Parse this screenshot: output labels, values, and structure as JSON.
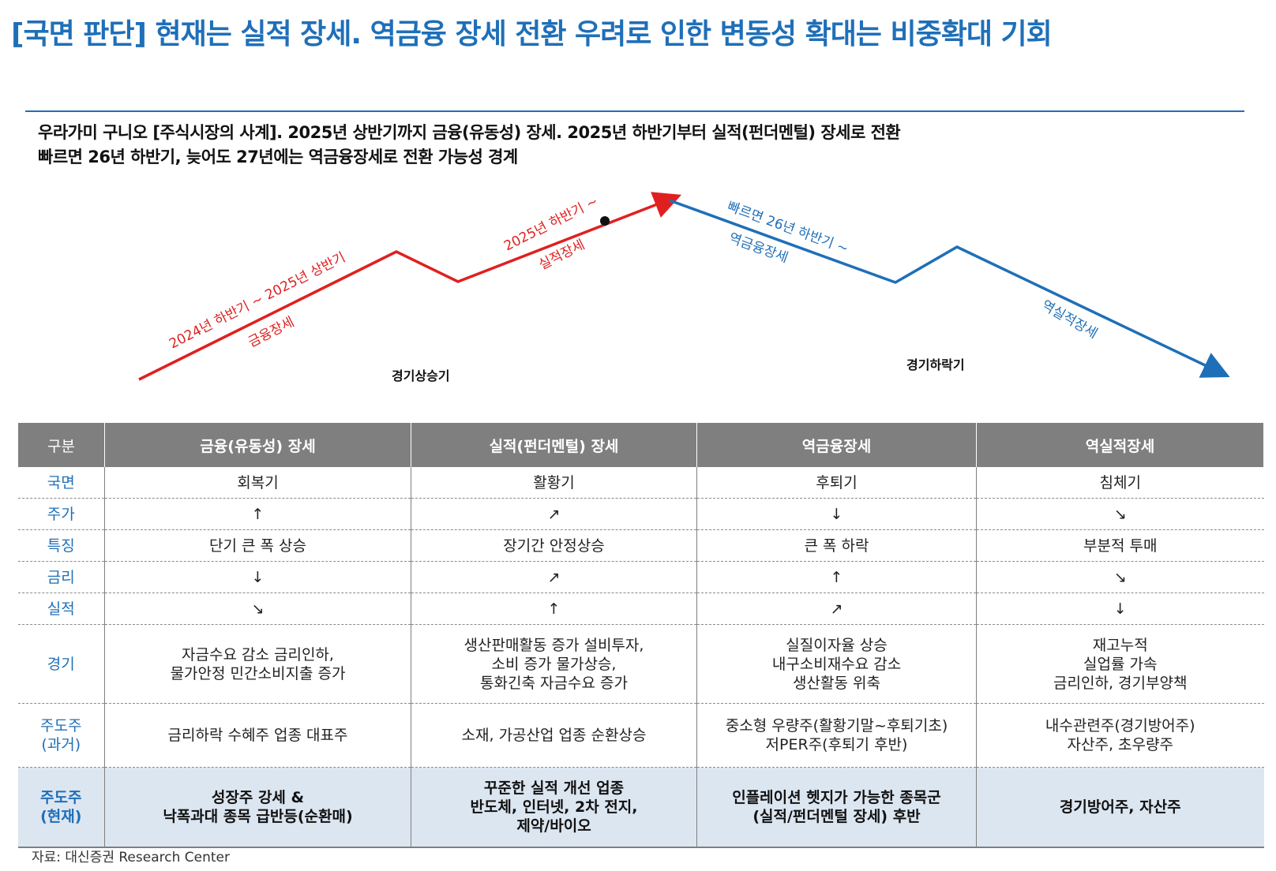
{
  "header": {
    "title": "[국면 판단] 현재는 실적 장세. 역금융 장세 전환 우려로 인한 변동성 확대는 비중확대 기회",
    "subtitle_line1": "우라가미 구니오 [주식시장의 사계]. 2025년 상반기까지 금융(유동성) 장세. 2025년 하반기부터 실적(펀더멘털) 장세로 전환",
    "subtitle_line2": "빠르면 26년 하반기, 늦어도 27년에는 역금융장세로 전환 가능성 경계"
  },
  "diagram": {
    "seg1_period": "2024년 하반기 ~ 2025년 상반기",
    "seg1_regime": "금융장세",
    "seg2_period": "2025년 하반기 ~",
    "seg2_regime": "실적장세",
    "seg3_period": "빠르면 26년 하반기 ~",
    "seg3_regime": "역금융장세",
    "seg4_regime": "역실적장세",
    "phase_up": "경기상승기",
    "phase_down": "경기하락기",
    "colors": {
      "up": "#e02020",
      "down": "#1f6fb8",
      "marker": "#111111"
    }
  },
  "table": {
    "headers": [
      "구분",
      "금융(유동성) 장세",
      "실적(펀더멘털) 장세",
      "역금융장세",
      "역실적장세"
    ],
    "rows": [
      {
        "label": "국면",
        "cells": [
          "회복기",
          "활황기",
          "후퇴기",
          "침체기"
        ]
      },
      {
        "label": "주가",
        "cells": [
          "↑",
          "↗",
          "↓",
          "↘"
        ]
      },
      {
        "label": "특징",
        "cells": [
          "단기 큰 폭 상승",
          "장기간 안정상승",
          "큰 폭 하락",
          "부분적 투매"
        ]
      },
      {
        "label": "금리",
        "cells": [
          "↓",
          "↗",
          "↑",
          "↘"
        ]
      },
      {
        "label": "실적",
        "cells": [
          "↘",
          "↑",
          "↗",
          "↓"
        ]
      },
      {
        "label": "경기",
        "cells": [
          "자금수요 감소 금리인하,\n물가안정 민간소비지출 증가",
          "생산판매활동 증가 설비투자,\n소비 증가 물가상승,\n통화긴축 자금수요 증가",
          "실질이자율 상승\n내구소비재수요 감소\n생산활동 위축",
          "재고누적\n실업률 가속\n금리인하, 경기부양책"
        ]
      },
      {
        "label": "주도주\n(과거)",
        "cells": [
          "금리하락 수혜주 업종 대표주",
          "소재, 가공산업 업종 순환상승",
          "중소형 우량주(활황기말~후퇴기초)\n저PER주(후퇴기 후반)",
          "내수관련주(경기방어주)\n자산주, 초우량주"
        ]
      },
      {
        "label": "주도주\n(현재)",
        "cells": [
          "성장주 강세 &\n낙폭과대 종목 급반등(순환매)",
          "꾸준한 실적 개선 업종\n반도체, 인터넷, 2차 전지,\n제약/바이오",
          "인플레이션 헷지가 가능한 종목군\n(실적/펀더멘털 장세) 후반",
          "경기방어주, 자산주"
        ]
      }
    ]
  },
  "footer": {
    "source": "자료: 대신증권 Research Center"
  }
}
